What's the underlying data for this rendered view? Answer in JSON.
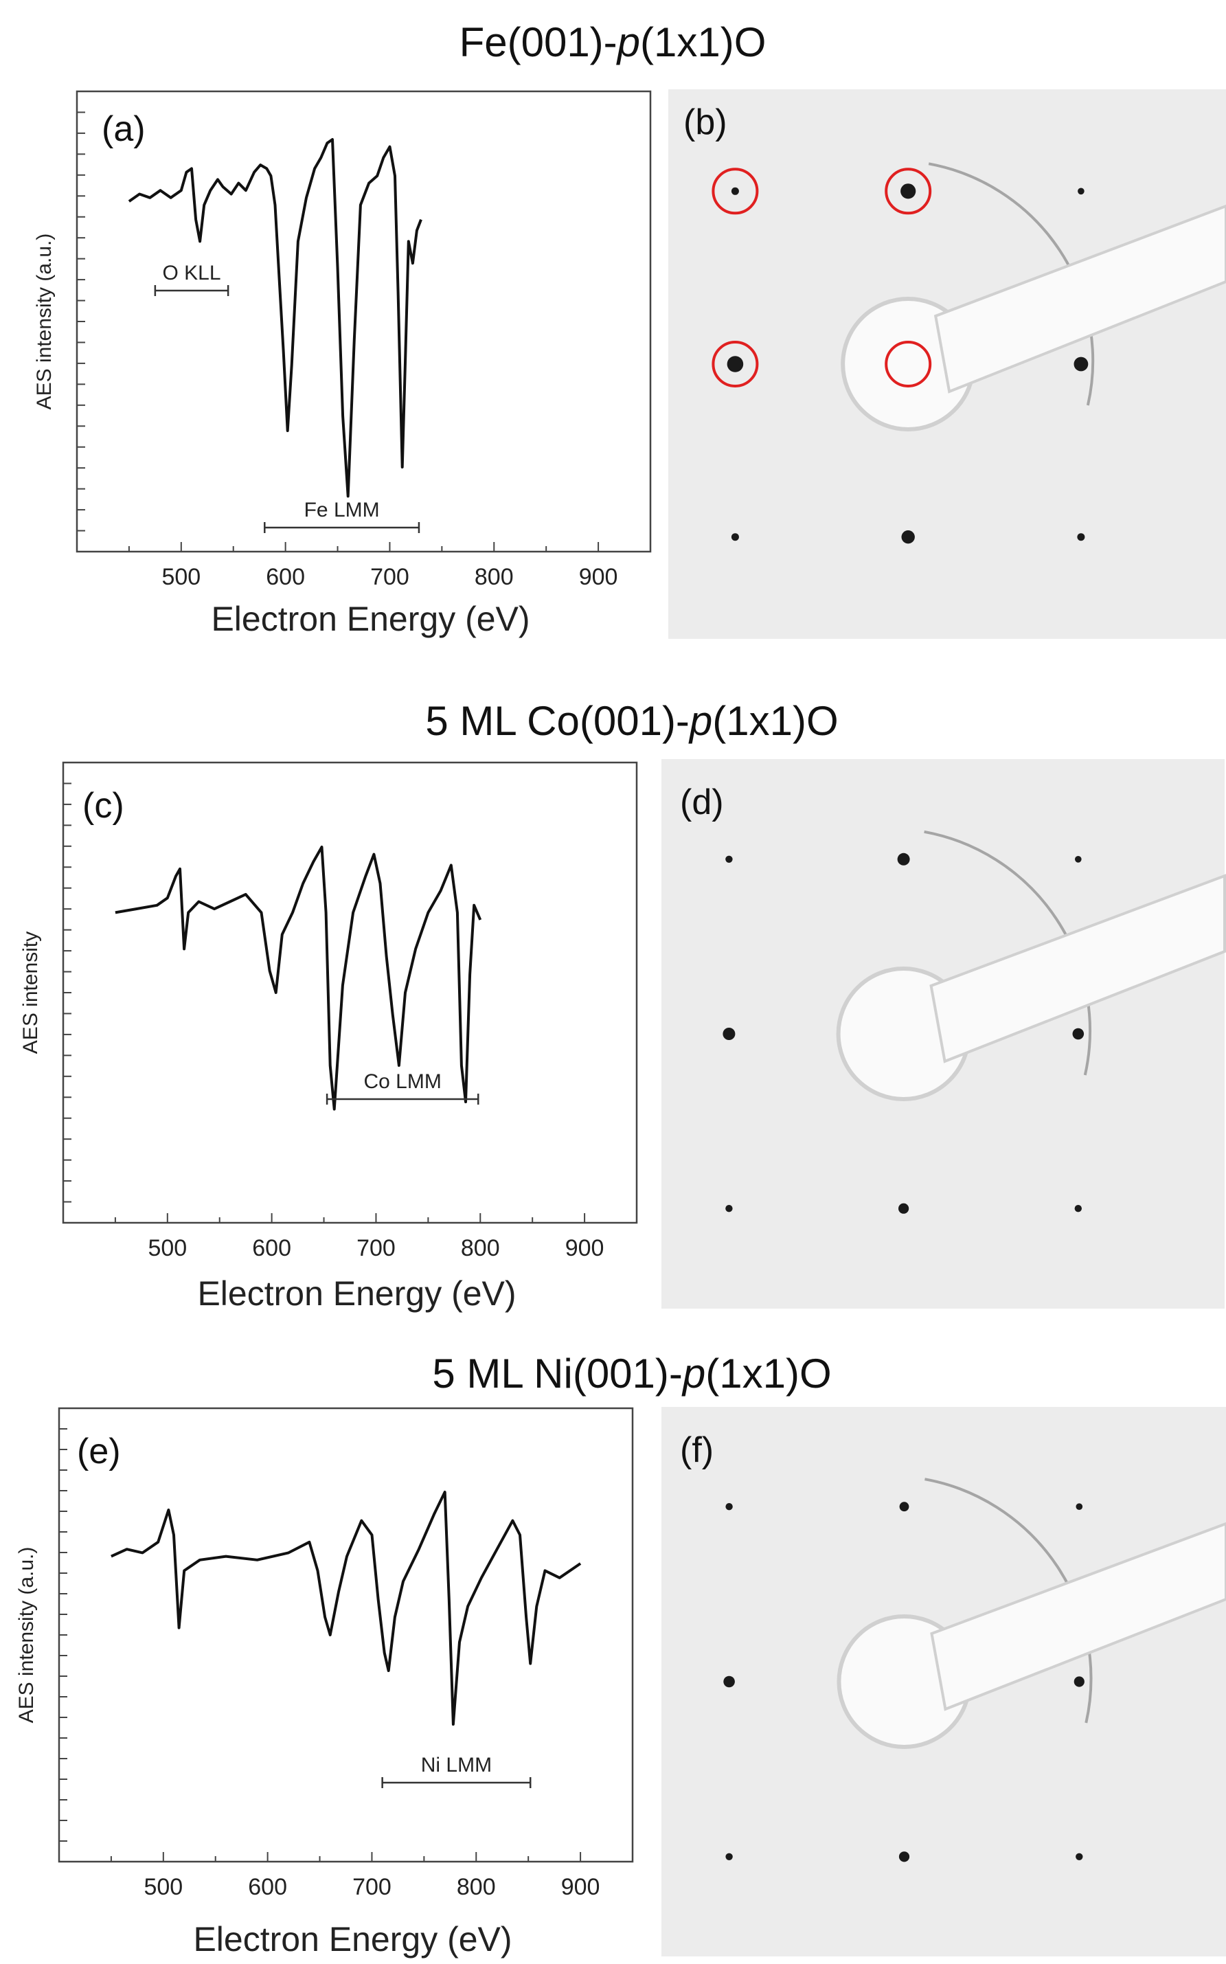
{
  "rows": [
    {
      "title_prefix": "Fe(001)-",
      "title_italic": "p",
      "title_suffix": "(1x1)O",
      "spectrum_label": "(a)",
      "leed_label": "(b)",
      "chart_data": {
        "type": "line",
        "xlabel": "Electron Energy (eV)",
        "ylabel": "AES intensity (a.u.)",
        "xlim": [
          400,
          950
        ],
        "ylim": [
          0,
          1
        ],
        "xticks": [
          500,
          600,
          700,
          800,
          900
        ],
        "series": [
          {
            "x": [
              450,
              460,
              470,
              480,
              490,
              500,
              505,
              510,
              514,
              518,
              522,
              528,
              535,
              540,
              548,
              555,
              562,
              570,
              576,
              582,
              586,
              590,
              594,
              598,
              602,
              606,
              612,
              620,
              628,
              634,
              640,
              645,
              650,
              655,
              660,
              666,
              672,
              680,
              688,
              694,
              700,
              705,
              708,
              712,
              715,
              718,
              722,
              726,
              730
            ],
            "y": [
              0.83,
              0.85,
              0.84,
              0.86,
              0.84,
              0.86,
              0.91,
              0.92,
              0.78,
              0.72,
              0.82,
              0.86,
              0.89,
              0.87,
              0.85,
              0.88,
              0.86,
              0.91,
              0.93,
              0.92,
              0.9,
              0.82,
              0.62,
              0.42,
              0.2,
              0.38,
              0.72,
              0.84,
              0.92,
              0.95,
              0.99,
              1.0,
              0.65,
              0.24,
              0.02,
              0.45,
              0.82,
              0.88,
              0.9,
              0.95,
              0.98,
              0.9,
              0.58,
              0.1,
              0.4,
              0.72,
              0.66,
              0.75,
              0.78
            ]
          }
        ],
        "annotations": [
          {
            "text": "O KLL",
            "x_start": 475,
            "x_end": 545
          },
          {
            "text": "Fe LMM",
            "x_start": 580,
            "x_end": 728
          }
        ]
      },
      "leed_spots": [
        {
          "h": -1,
          "k": -1,
          "size": 0.5
        },
        {
          "h": 0,
          "k": -1,
          "size": 1.3
        },
        {
          "h": 1,
          "k": -1,
          "size": 0.4
        },
        {
          "h": -1,
          "k": 0,
          "size": 1.4
        },
        {
          "h": 1,
          "k": 0,
          "size": 1.2
        },
        {
          "h": -1,
          "k": 1,
          "size": 0.5
        },
        {
          "h": 0,
          "k": 1,
          "size": 1.1
        },
        {
          "h": 1,
          "k": 1,
          "size": 0.5
        }
      ],
      "leed_markers": [
        {
          "h": -1,
          "k": -1
        },
        {
          "h": 0,
          "k": -1
        },
        {
          "h": -1,
          "k": 0
        },
        {
          "h": 0,
          "k": 0
        }
      ]
    },
    {
      "title_prefix": "5 ML Co(001)-",
      "title_italic": "p",
      "title_suffix": "(1x1)O",
      "spectrum_label": "(c)",
      "leed_label": "(d)",
      "chart_data": {
        "type": "line",
        "xlabel": "Electron Energy (eV)",
        "ylabel": "AES intensity",
        "xlim": [
          400,
          950
        ],
        "ylim": [
          0,
          1
        ],
        "xticks": [
          500,
          600,
          700,
          800,
          900
        ],
        "series": [
          {
            "x": [
              450,
              470,
              490,
              500,
              508,
              512,
              516,
              520,
              530,
              545,
              560,
              575,
              590,
              598,
              604,
              610,
              620,
              630,
              640,
              648,
              652,
              656,
              660,
              668,
              678,
              690,
              698,
              704,
              710,
              716,
              722,
              728,
              738,
              750,
              762,
              772,
              778,
              782,
              786,
              790,
              794,
              800
            ],
            "y": [
              0.72,
              0.73,
              0.74,
              0.76,
              0.82,
              0.84,
              0.62,
              0.72,
              0.75,
              0.73,
              0.75,
              0.77,
              0.72,
              0.56,
              0.5,
              0.66,
              0.72,
              0.8,
              0.86,
              0.9,
              0.72,
              0.3,
              0.18,
              0.52,
              0.72,
              0.82,
              0.88,
              0.8,
              0.6,
              0.44,
              0.3,
              0.5,
              0.62,
              0.72,
              0.78,
              0.85,
              0.72,
              0.3,
              0.2,
              0.55,
              0.74,
              0.7
            ]
          }
        ],
        "annotations": [
          {
            "text": "Co LMM",
            "x_start": 653,
            "x_end": 798
          }
        ]
      },
      "leed_spots": [
        {
          "h": -1,
          "k": -1,
          "size": 0.45
        },
        {
          "h": 0,
          "k": -1,
          "size": 1.0
        },
        {
          "h": 1,
          "k": -1,
          "size": 0.4
        },
        {
          "h": -1,
          "k": 0,
          "size": 1.0
        },
        {
          "h": 1,
          "k": 0,
          "size": 0.9
        },
        {
          "h": -1,
          "k": 1,
          "size": 0.45
        },
        {
          "h": 0,
          "k": 1,
          "size": 0.8
        },
        {
          "h": 1,
          "k": 1,
          "size": 0.45
        }
      ],
      "leed_markers": []
    },
    {
      "title_prefix": "5 ML Ni(001)-",
      "title_italic": "p",
      "title_suffix": "(1x1)O",
      "spectrum_label": "(e)",
      "leed_label": "(f)",
      "chart_data": {
        "type": "line",
        "xlabel": "Electron Energy (eV)",
        "ylabel": "AES intensity (a.u.)",
        "xlim": [
          400,
          950
        ],
        "ylim": [
          0,
          1
        ],
        "xticks": [
          500,
          600,
          700,
          800,
          900
        ],
        "series": [
          {
            "x": [
              450,
              465,
              480,
              495,
              505,
              510,
              515,
              520,
              535,
              560,
              590,
              620,
              640,
              648,
              655,
              660,
              668,
              676,
              690,
              700,
              706,
              712,
              716,
              722,
              730,
              745,
              760,
              770,
              774,
              778,
              784,
              792,
              805,
              820,
              835,
              842,
              848,
              852,
              858,
              866,
              880,
              900
            ],
            "y": [
              0.72,
              0.74,
              0.73,
              0.76,
              0.85,
              0.78,
              0.52,
              0.68,
              0.71,
              0.72,
              0.71,
              0.73,
              0.76,
              0.68,
              0.55,
              0.5,
              0.62,
              0.72,
              0.82,
              0.78,
              0.6,
              0.45,
              0.4,
              0.55,
              0.65,
              0.74,
              0.84,
              0.9,
              0.6,
              0.25,
              0.48,
              0.58,
              0.66,
              0.74,
              0.82,
              0.78,
              0.55,
              0.42,
              0.58,
              0.68,
              0.66,
              0.7
            ]
          }
        ],
        "annotations": [
          {
            "text": "Ni LMM",
            "x_start": 710,
            "x_end": 852
          }
        ]
      },
      "leed_spots": [
        {
          "h": -1,
          "k": -1,
          "size": 0.45
        },
        {
          "h": 0,
          "k": -1,
          "size": 0.7
        },
        {
          "h": 1,
          "k": -1,
          "size": 0.4
        },
        {
          "h": -1,
          "k": 0,
          "size": 0.9
        },
        {
          "h": 1,
          "k": 0,
          "size": 0.8
        },
        {
          "h": -1,
          "k": 1,
          "size": 0.45
        },
        {
          "h": 0,
          "k": 1,
          "size": 0.8
        },
        {
          "h": 1,
          "k": 1,
          "size": 0.45
        }
      ],
      "leed_markers": []
    }
  ]
}
